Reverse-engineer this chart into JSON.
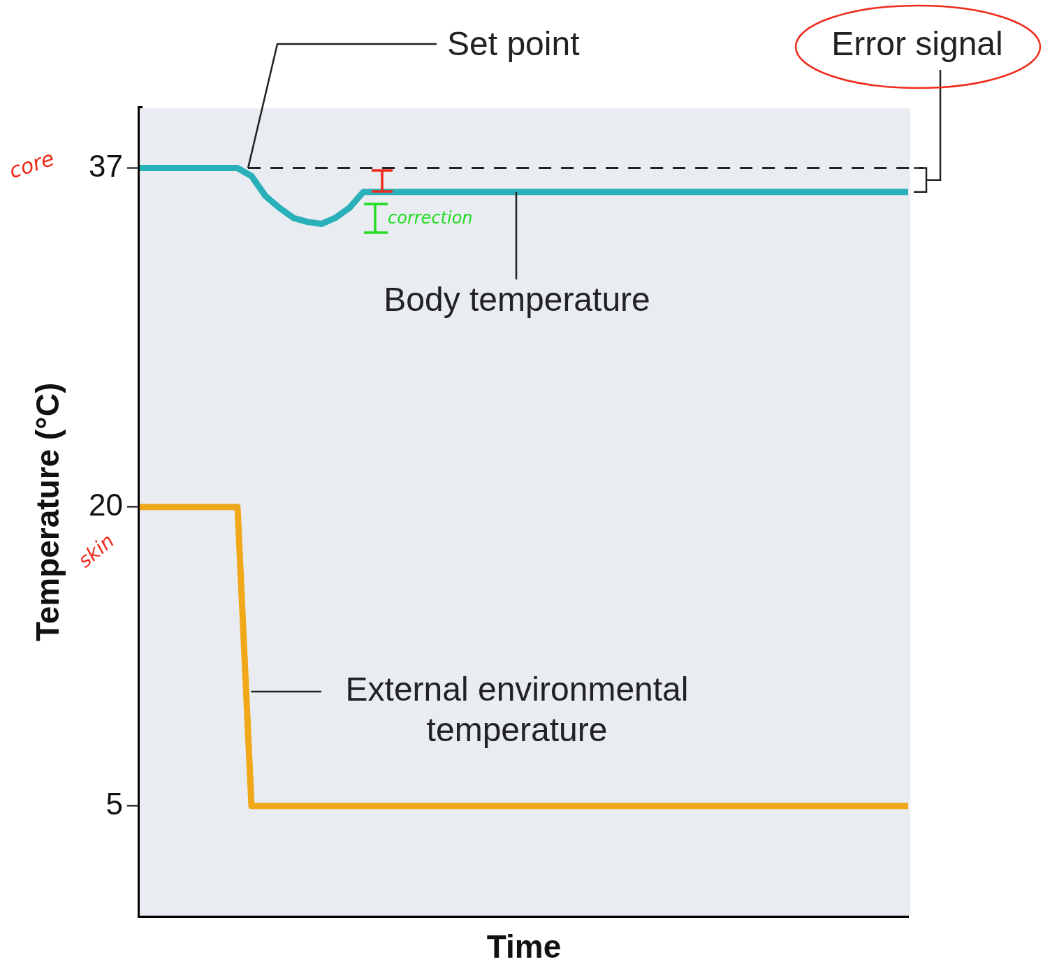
{
  "chart_data": {
    "type": "line",
    "xlabel": "Time",
    "ylabel": "Temperature (°C)",
    "categories": [
      null,
      null,
      null,
      null,
      null,
      null,
      null,
      null,
      null,
      null,
      null,
      null,
      null,
      null,
      null,
      null,
      null,
      null,
      null,
      null,
      null,
      null,
      null,
      null,
      null,
      null,
      null,
      null,
      null,
      null,
      null,
      null,
      null,
      null,
      null,
      null,
      null,
      null,
      null,
      null,
      null,
      null,
      null,
      null,
      null,
      null,
      null,
      null,
      null,
      null,
      null,
      null,
      null,
      null,
      null,
      null
    ],
    "ylim": [
      -0.5,
      40
    ],
    "yticks": [
      5,
      20,
      37
    ],
    "tick_labels": "y",
    "legend": false,
    "marker": "none",
    "series": [
      {
        "color": "#2ab0b8",
        "values": [
          37,
          37,
          37,
          37,
          37,
          37,
          37,
          37,
          36.6,
          35.6,
          35,
          34.5,
          34.3,
          34.2,
          34.5,
          35,
          35.8,
          35.8,
          35.8,
          35.8,
          35.8,
          35.8,
          35.8,
          35.8,
          35.8,
          35.8,
          35.8,
          35.8,
          35.8,
          35.8,
          35.8,
          35.8,
          35.8,
          35.8,
          35.8,
          35.8,
          35.8,
          35.8,
          35.8,
          35.8,
          35.8,
          35.8,
          35.8,
          35.8,
          35.8,
          35.8,
          35.8,
          35.8,
          35.8,
          35.8,
          35.8,
          35.8,
          35.8,
          35.8,
          35.8,
          35.8
        ]
      },
      {
        "color": "#f0a818",
        "values": [
          20,
          20,
          20,
          20,
          20,
          20,
          20,
          20,
          5,
          5,
          5,
          5,
          5,
          5,
          5,
          5,
          5,
          5,
          5,
          5,
          5,
          5,
          5,
          5,
          5,
          5,
          5,
          5,
          5,
          5,
          5,
          5,
          5,
          5,
          5,
          5,
          5,
          5,
          5,
          5,
          5,
          5,
          5,
          5,
          5,
          5,
          5,
          5,
          5,
          5,
          5,
          5,
          5,
          5,
          5,
          5
        ]
      }
    ],
    "ref_lines": [
      {
        "axis": "y",
        "value": 37,
        "line_style": "dashed",
        "color": "#222222"
      }
    ],
    "annotations": [
      "Set point",
      {
        "text": "Body temperature",
        "y": 35.8
      },
      "External environmental temperature",
      "Error signal",
      "core",
      "skin",
      "correction"
    ]
  }
}
